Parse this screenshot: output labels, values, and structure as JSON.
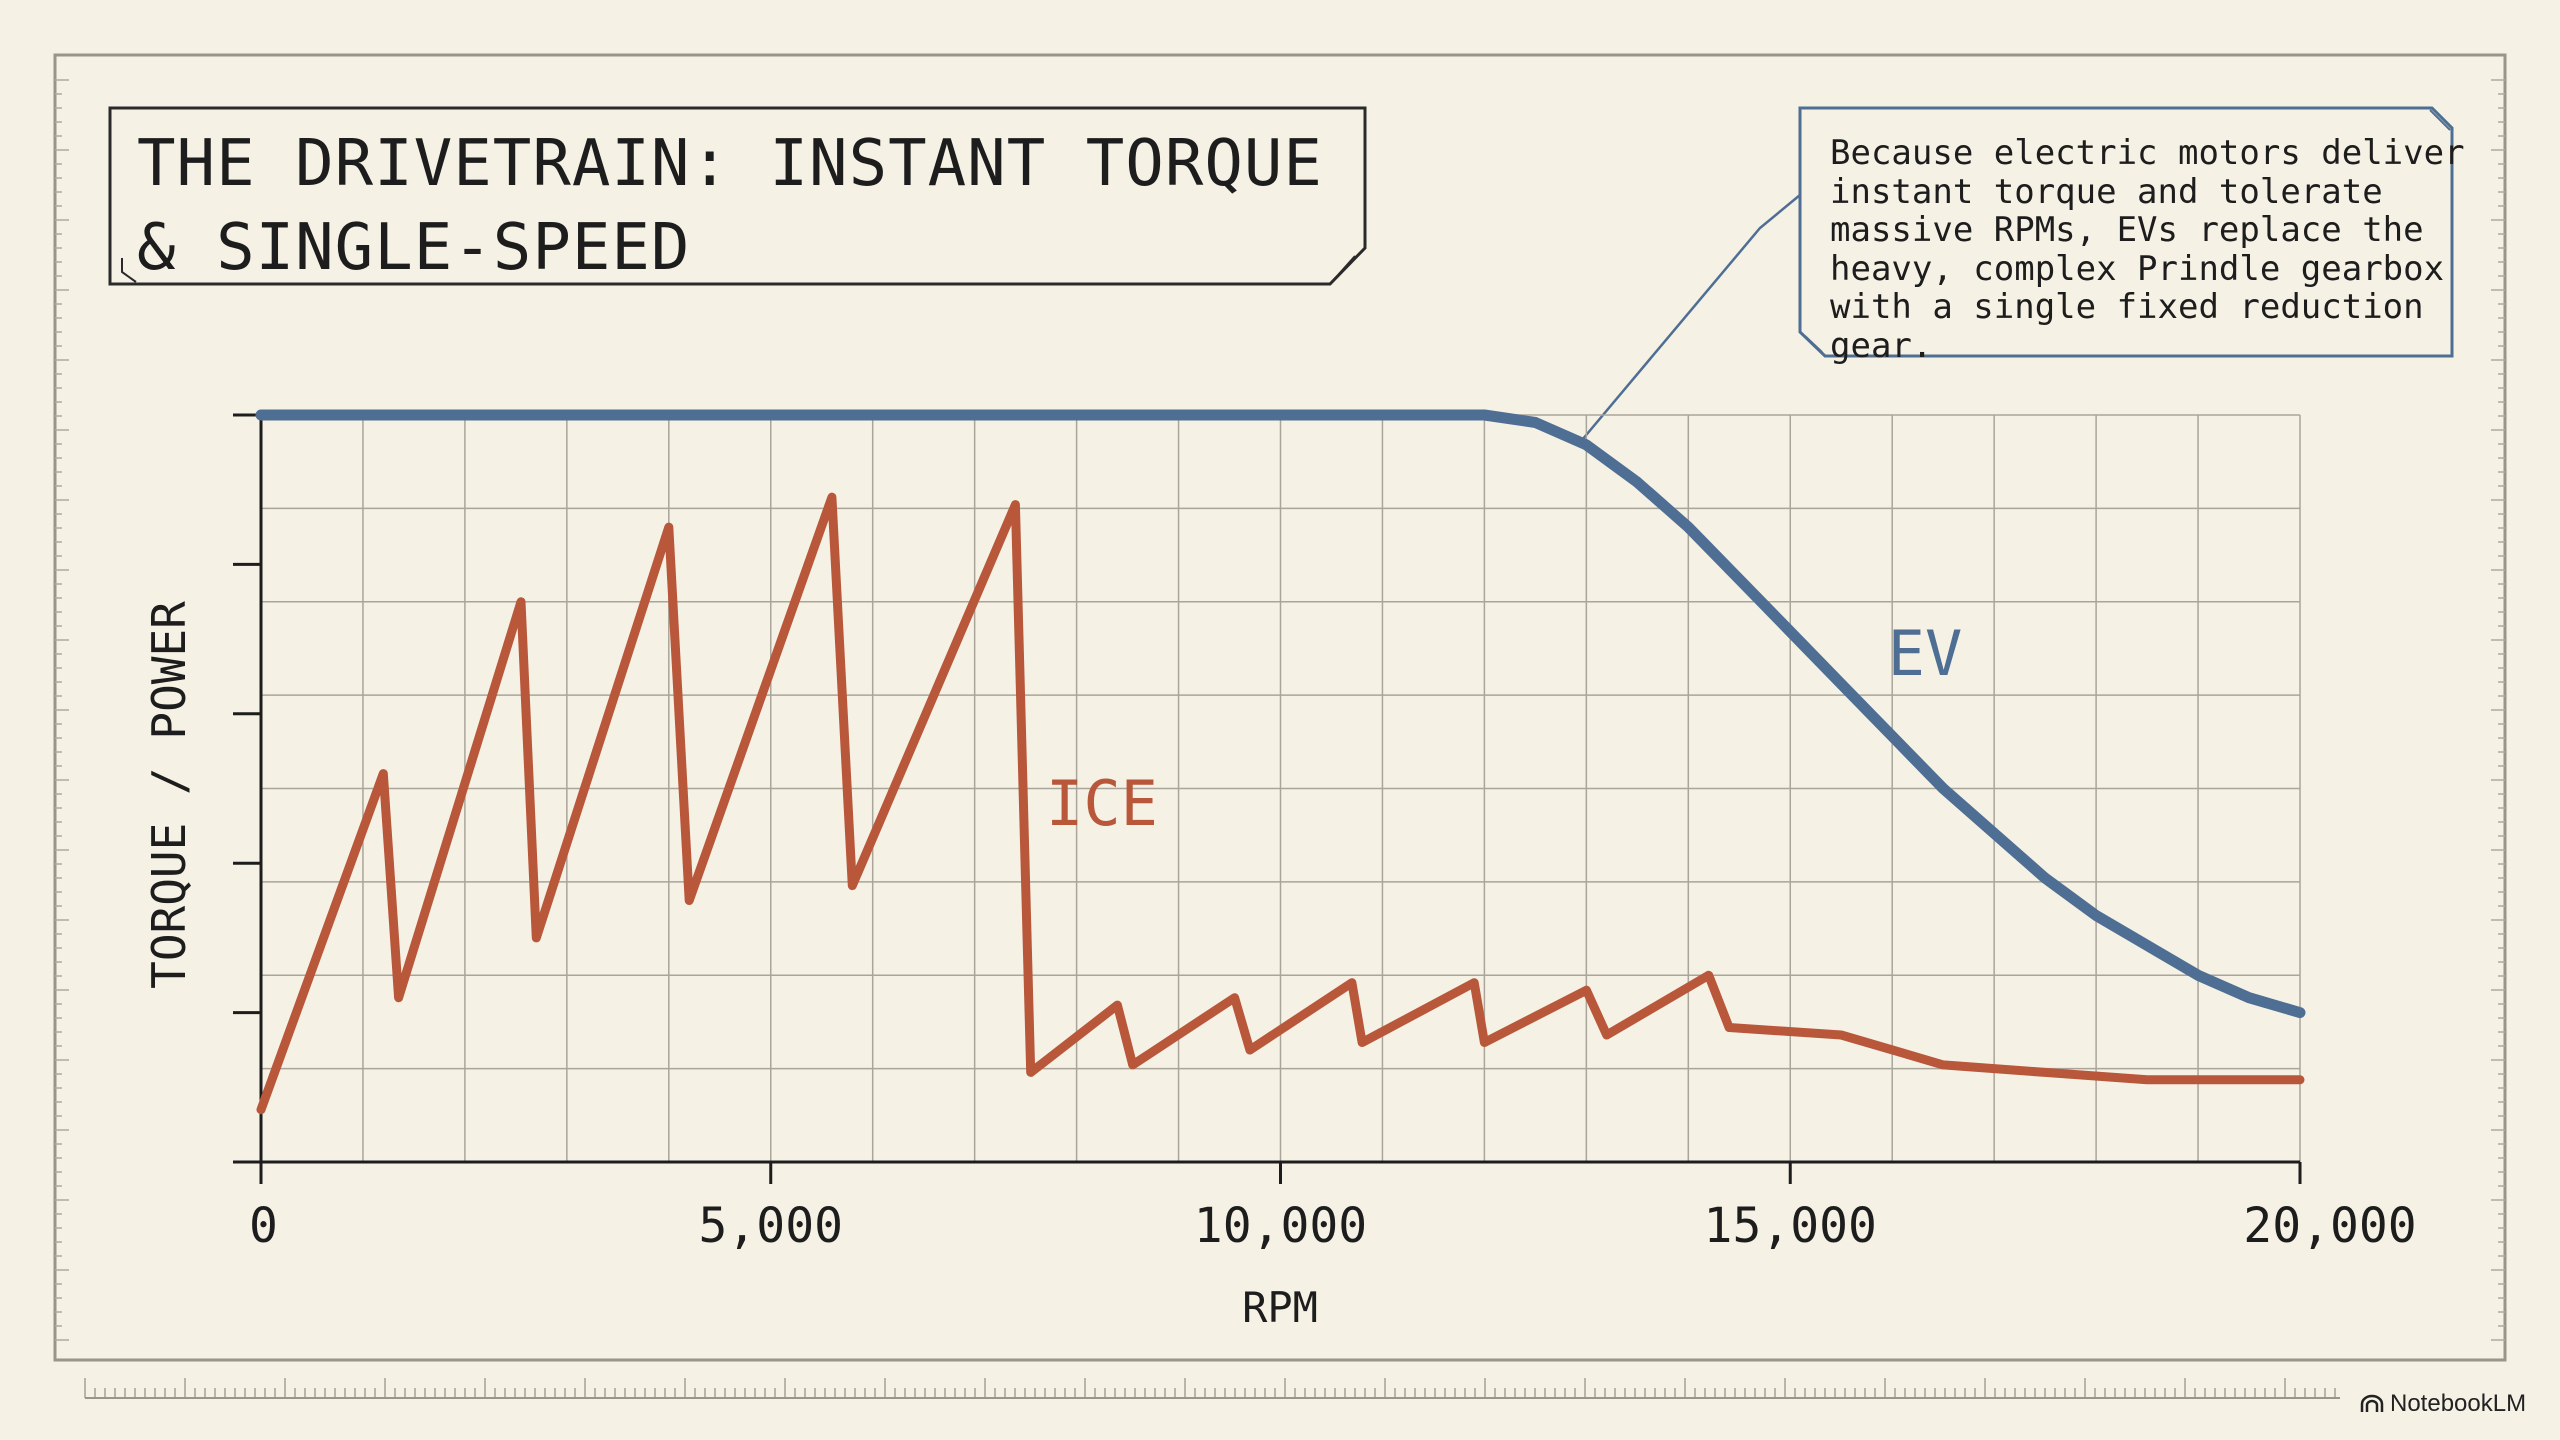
{
  "chart_data": {
    "type": "line",
    "title": "THE DRIVETRAIN: INSTANT TORQUE & SINGLE-SPEED",
    "xlabel": "RPM",
    "ylabel": "TORQUE / POWER",
    "xlim": [
      0,
      20000
    ],
    "ylim": [
      0,
      100
    ],
    "x_ticks": [
      0,
      5000,
      10000,
      15000,
      20000
    ],
    "x_tick_labels": [
      "0",
      "5,000",
      "10,000",
      "15,000",
      "20,000"
    ],
    "grid": true,
    "annotation": "Because electric motors deliver instant torque and tolerate massive RPMs, EVs replace the heavy, complex Prindle gearbox with a single fixed reduction gear.",
    "series": [
      {
        "name": "EV",
        "color": "#4f6e94",
        "x": [
          0,
          12000,
          12500,
          13000,
          13500,
          14000,
          14500,
          15000,
          15500,
          16000,
          16500,
          17000,
          17500,
          18000,
          18500,
          19000,
          19500,
          20000
        ],
        "y": [
          100,
          100,
          99,
          96,
          91,
          85,
          78,
          71,
          64,
          57,
          50,
          44,
          38,
          33,
          29,
          25,
          22,
          20
        ]
      },
      {
        "name": "ICE",
        "color": "#b8573a",
        "x": [
          0,
          1200,
          1350,
          2550,
          2700,
          4000,
          4200,
          5600,
          5800,
          7400,
          7550,
          8400,
          8550,
          9550,
          9700,
          10700,
          10800,
          11900,
          12000,
          13000,
          13200,
          14200,
          14400,
          15500,
          16500,
          17500,
          18500,
          20000
        ],
        "y": [
          7,
          52,
          22,
          75,
          30,
          85,
          35,
          89,
          37,
          88,
          12,
          21,
          13,
          22,
          15,
          24,
          16,
          24,
          16,
          23,
          17,
          25,
          18,
          17,
          13,
          12,
          11,
          11
        ]
      }
    ]
  },
  "branding": {
    "logo_text": "NotebookLM"
  }
}
